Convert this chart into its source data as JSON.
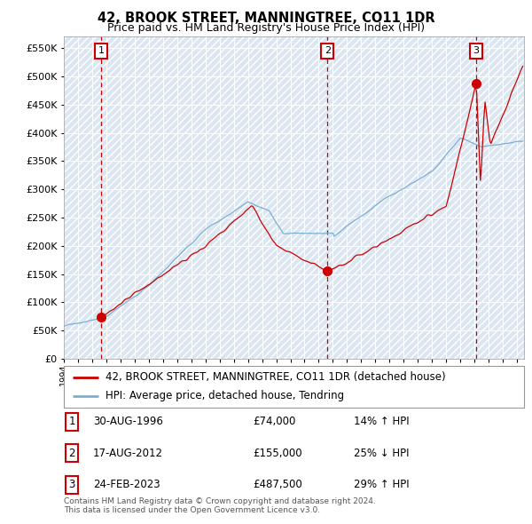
{
  "title": "42, BROOK STREET, MANNINGTREE, CO11 1DR",
  "subtitle": "Price paid vs. HM Land Registry's House Price Index (HPI)",
  "ylim": [
    0,
    570000
  ],
  "yticks": [
    0,
    50000,
    100000,
    150000,
    200000,
    250000,
    300000,
    350000,
    400000,
    450000,
    500000,
    550000
  ],
  "xlim_start": 1994.0,
  "xlim_end": 2026.5,
  "background_color": "#ffffff",
  "plot_bg_color": "#dce6f1",
  "grid_color": "#ffffff",
  "transaction_color": "#cc0000",
  "hpi_line_color": "#7bafd4",
  "transactions": [
    {
      "date_num": 1996.63,
      "price": 74000,
      "label": "1"
    },
    {
      "date_num": 2012.62,
      "price": 155000,
      "label": "2"
    },
    {
      "date_num": 2023.13,
      "price": 487500,
      "label": "3"
    }
  ],
  "legend_entries": [
    {
      "label": "42, BROOK STREET, MANNINGTREE, CO11 1DR (detached house)",
      "color": "#cc0000"
    },
    {
      "label": "HPI: Average price, detached house, Tendring",
      "color": "#7bafd4"
    }
  ],
  "table_rows": [
    {
      "num": "1",
      "date": "30-AUG-1996",
      "price": "£74,000",
      "pct": "14% ↑ HPI"
    },
    {
      "num": "2",
      "date": "17-AUG-2012",
      "price": "£155,000",
      "pct": "25% ↓ HPI"
    },
    {
      "num": "3",
      "date": "24-FEB-2023",
      "price": "£487,500",
      "pct": "29% ↑ HPI"
    }
  ],
  "footer": "Contains HM Land Registry data © Crown copyright and database right 2024.\nThis data is licensed under the Open Government Licence v3.0.",
  "title_fontsize": 10.5,
  "subtitle_fontsize": 9,
  "tick_fontsize": 8,
  "legend_fontsize": 8.5,
  "table_fontsize": 8.5
}
